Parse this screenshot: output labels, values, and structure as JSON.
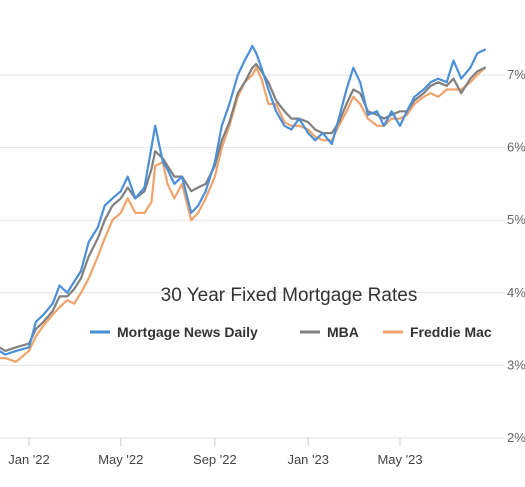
{
  "chart_data": {
    "type": "line",
    "title": "30 Year Fixed Mortgage Rates",
    "xlabel": "",
    "ylabel": "",
    "x_ticks": [
      "Jan '22",
      "May '22",
      "Sep '22",
      "Jan '23",
      "May '23"
    ],
    "y_ticks": [
      "2%",
      "3%",
      "4%",
      "5%",
      "6%",
      "7%"
    ],
    "ylim": [
      2,
      8
    ],
    "legend_position": "center-right",
    "grid": "horizontal",
    "series": [
      {
        "name": "Mortgage News Daily",
        "color": "#4a90d9",
        "x": [
          "2021-11-01",
          "2021-11-15",
          "2021-12-01",
          "2021-12-15",
          "2022-01-01",
          "2022-01-10",
          "2022-01-20",
          "2022-02-01",
          "2022-02-10",
          "2022-02-20",
          "2022-03-01",
          "2022-03-10",
          "2022-03-20",
          "2022-04-01",
          "2022-04-10",
          "2022-04-20",
          "2022-05-01",
          "2022-05-10",
          "2022-05-20",
          "2022-06-01",
          "2022-06-10",
          "2022-06-15",
          "2022-06-25",
          "2022-07-01",
          "2022-07-10",
          "2022-07-20",
          "2022-08-01",
          "2022-08-10",
          "2022-08-20",
          "2022-09-01",
          "2022-09-10",
          "2022-09-20",
          "2022-10-01",
          "2022-10-10",
          "2022-10-20",
          "2022-10-25",
          "2022-11-01",
          "2022-11-10",
          "2022-11-20",
          "2022-12-01",
          "2022-12-10",
          "2022-12-20",
          "2023-01-01",
          "2023-01-10",
          "2023-01-20",
          "2023-02-01",
          "2023-02-10",
          "2023-02-20",
          "2023-03-01",
          "2023-03-10",
          "2023-03-20",
          "2023-04-01",
          "2023-04-10",
          "2023-04-20",
          "2023-05-01",
          "2023-05-10",
          "2023-05-20",
          "2023-06-01",
          "2023-06-10",
          "2023-06-20",
          "2023-07-01",
          "2023-07-10",
          "2023-07-20",
          "2023-08-01",
          "2023-08-10",
          "2023-08-20"
        ],
        "values": [
          3.2,
          3.25,
          3.15,
          3.2,
          3.25,
          3.6,
          3.7,
          3.85,
          4.1,
          4.0,
          4.15,
          4.3,
          4.7,
          4.9,
          5.2,
          5.3,
          5.4,
          5.6,
          5.3,
          5.45,
          6.0,
          6.3,
          5.8,
          5.7,
          5.5,
          5.6,
          5.1,
          5.2,
          5.4,
          5.8,
          6.3,
          6.6,
          7.0,
          7.2,
          7.4,
          7.3,
          7.1,
          6.8,
          6.5,
          6.3,
          6.25,
          6.4,
          6.2,
          6.1,
          6.2,
          6.05,
          6.4,
          6.8,
          7.1,
          6.9,
          6.45,
          6.5,
          6.3,
          6.5,
          6.3,
          6.5,
          6.7,
          6.8,
          6.9,
          6.95,
          6.9,
          7.2,
          6.95,
          7.1,
          7.3,
          7.35
        ]
      },
      {
        "name": "MBA",
        "color": "#808080",
        "x": [
          "2021-11-01",
          "2021-11-15",
          "2021-12-01",
          "2021-12-15",
          "2022-01-01",
          "2022-01-10",
          "2022-01-20",
          "2022-02-01",
          "2022-02-10",
          "2022-02-20",
          "2022-03-01",
          "2022-03-10",
          "2022-03-20",
          "2022-04-01",
          "2022-04-10",
          "2022-04-20",
          "2022-05-01",
          "2022-05-10",
          "2022-05-20",
          "2022-06-01",
          "2022-06-10",
          "2022-06-15",
          "2022-06-25",
          "2022-07-01",
          "2022-07-10",
          "2022-07-20",
          "2022-08-01",
          "2022-08-10",
          "2022-08-20",
          "2022-09-01",
          "2022-09-10",
          "2022-09-20",
          "2022-10-01",
          "2022-10-10",
          "2022-10-20",
          "2022-10-25",
          "2022-11-01",
          "2022-11-10",
          "2022-11-20",
          "2022-12-01",
          "2022-12-10",
          "2022-12-20",
          "2023-01-01",
          "2023-01-10",
          "2023-01-20",
          "2023-02-01",
          "2023-02-10",
          "2023-02-20",
          "2023-03-01",
          "2023-03-10",
          "2023-03-20",
          "2023-04-01",
          "2023-04-10",
          "2023-04-20",
          "2023-05-01",
          "2023-05-10",
          "2023-05-20",
          "2023-06-01",
          "2023-06-10",
          "2023-06-20",
          "2023-07-01",
          "2023-07-10",
          "2023-07-20",
          "2023-08-01",
          "2023-08-10",
          "2023-08-20"
        ],
        "values": [
          3.25,
          3.3,
          3.2,
          3.25,
          3.3,
          3.5,
          3.6,
          3.75,
          3.95,
          3.95,
          4.05,
          4.2,
          4.5,
          4.75,
          5.0,
          5.2,
          5.3,
          5.45,
          5.3,
          5.4,
          5.7,
          5.95,
          5.85,
          5.75,
          5.6,
          5.6,
          5.4,
          5.45,
          5.5,
          5.75,
          6.1,
          6.35,
          6.75,
          6.9,
          7.1,
          7.15,
          7.05,
          6.9,
          6.65,
          6.5,
          6.4,
          6.4,
          6.35,
          6.25,
          6.2,
          6.2,
          6.35,
          6.6,
          6.8,
          6.75,
          6.5,
          6.45,
          6.4,
          6.45,
          6.5,
          6.5,
          6.65,
          6.75,
          6.85,
          6.9,
          6.85,
          6.95,
          6.75,
          6.95,
          7.05,
          7.1
        ]
      },
      {
        "name": "Freddie Mac",
        "color": "#f0a36b",
        "x": [
          "2021-11-01",
          "2021-11-15",
          "2021-12-01",
          "2021-12-15",
          "2022-01-01",
          "2022-01-10",
          "2022-01-20",
          "2022-02-01",
          "2022-02-10",
          "2022-02-20",
          "2022-03-01",
          "2022-03-10",
          "2022-03-20",
          "2022-04-01",
          "2022-04-10",
          "2022-04-20",
          "2022-05-01",
          "2022-05-10",
          "2022-05-20",
          "2022-06-01",
          "2022-06-10",
          "2022-06-15",
          "2022-06-25",
          "2022-07-01",
          "2022-07-10",
          "2022-07-20",
          "2022-08-01",
          "2022-08-10",
          "2022-08-20",
          "2022-09-01",
          "2022-09-10",
          "2022-09-20",
          "2022-10-01",
          "2022-10-10",
          "2022-10-20",
          "2022-10-25",
          "2022-11-01",
          "2022-11-10",
          "2022-11-20",
          "2022-12-01",
          "2022-12-10",
          "2022-12-20",
          "2023-01-01",
          "2023-01-10",
          "2023-01-20",
          "2023-02-01",
          "2023-02-10",
          "2023-02-20",
          "2023-03-01",
          "2023-03-10",
          "2023-03-20",
          "2023-04-01",
          "2023-04-10",
          "2023-04-20",
          "2023-05-01",
          "2023-05-10",
          "2023-05-20",
          "2023-06-01",
          "2023-06-10",
          "2023-06-20",
          "2023-07-01",
          "2023-07-10",
          "2023-07-20",
          "2023-08-01",
          "2023-08-10",
          "2023-08-20"
        ],
        "values": [
          3.1,
          3.1,
          3.1,
          3.05,
          3.2,
          3.4,
          3.55,
          3.7,
          3.8,
          3.9,
          3.85,
          4.0,
          4.2,
          4.5,
          4.75,
          5.0,
          5.1,
          5.3,
          5.1,
          5.1,
          5.25,
          5.75,
          5.8,
          5.5,
          5.3,
          5.5,
          5.0,
          5.1,
          5.3,
          5.6,
          6.0,
          6.3,
          6.7,
          6.9,
          7.0,
          7.1,
          6.95,
          6.6,
          6.6,
          6.35,
          6.3,
          6.3,
          6.25,
          6.15,
          6.1,
          6.1,
          6.3,
          6.5,
          6.7,
          6.6,
          6.4,
          6.3,
          6.3,
          6.4,
          6.4,
          6.45,
          6.6,
          6.7,
          6.75,
          6.7,
          6.8,
          6.8,
          6.8,
          6.9,
          7.0,
          7.1
        ]
      }
    ]
  }
}
